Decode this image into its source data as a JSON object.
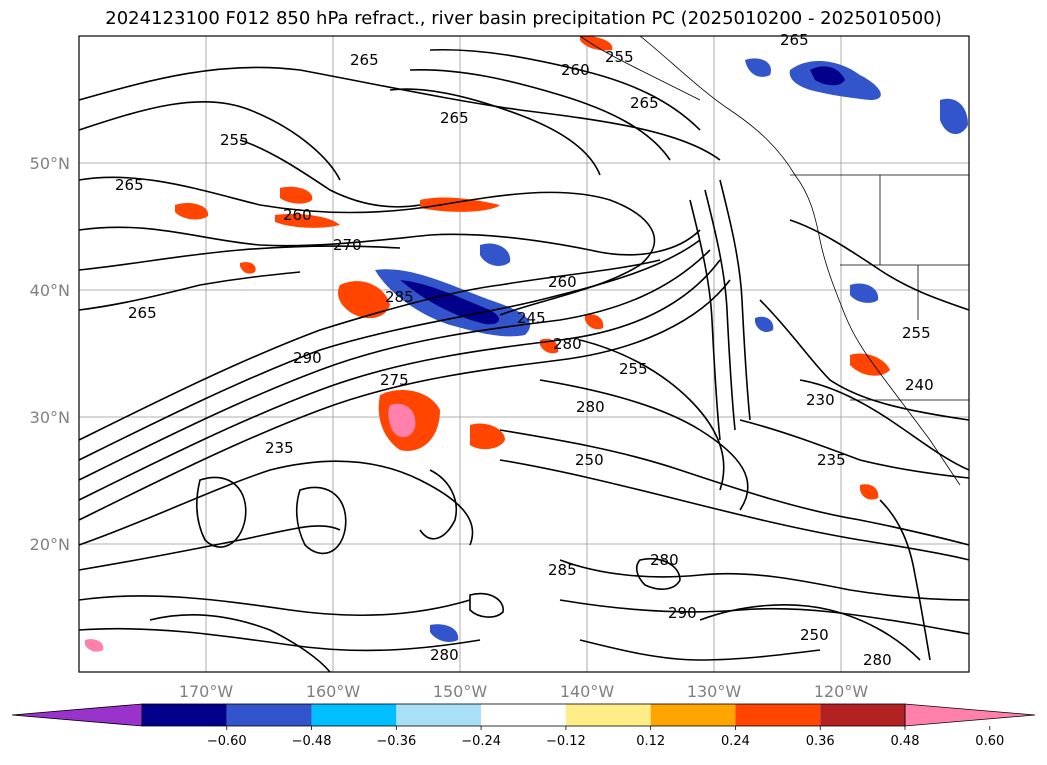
{
  "title": "2024123100 F012 850 hPa refract., river basin precipitation PC (2025010200 - 2025010500)",
  "lat_labels": [
    "50°N",
    "40°N",
    "30°N",
    "20°N"
  ],
  "lon_labels": [
    "170°W",
    "160°W",
    "150°W",
    "140°W",
    "130°W",
    "120°W"
  ],
  "colorbar": {
    "ticks": [
      "−0.60",
      "−0.48",
      "−0.36",
      "−0.24",
      "−0.12",
      "0.12",
      "0.24",
      "0.36",
      "0.48",
      "0.60"
    ],
    "colors": [
      "#9933cc",
      "#00008b",
      "#3355cc",
      "#00bfff",
      "#aadff8",
      "#ffffff",
      "#ffee88",
      "#ffa500",
      "#ff4500",
      "#b22222",
      "#ff80aa"
    ]
  },
  "contour_labels": [
    "260",
    "265",
    "255",
    "265",
    "265",
    "255",
    "265",
    "260",
    "270",
    "265",
    "260",
    "265",
    "285",
    "245",
    "280",
    "255",
    "290",
    "275",
    "280",
    "230",
    "235",
    "250",
    "280",
    "255",
    "285",
    "280",
    "290",
    "235",
    "280",
    "250",
    "240"
  ],
  "icons": [
    "coastline",
    "border-lines"
  ]
}
